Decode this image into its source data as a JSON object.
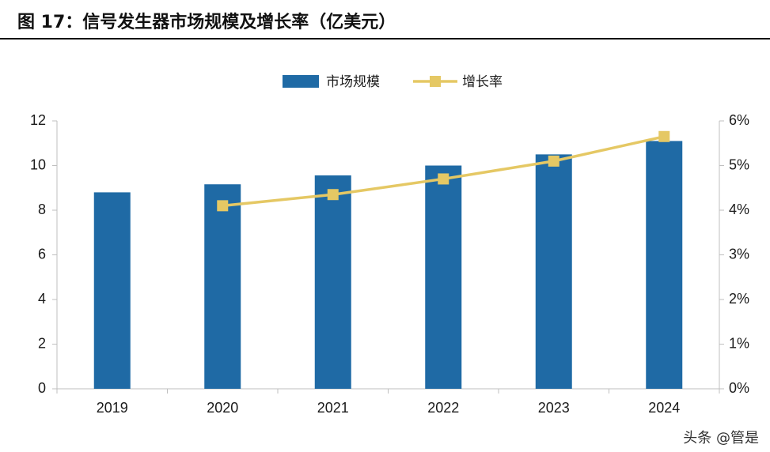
{
  "title": "图 17：信号发生器市场规模及增长率（亿美元）",
  "watermark": "头条 @管是",
  "colors": {
    "bar": "#1f6aa5",
    "line": "#e5c864",
    "axis": "#bfbfbf"
  },
  "chart_data": {
    "type": "bar",
    "categories": [
      "2019",
      "2020",
      "2021",
      "2022",
      "2023",
      "2024"
    ],
    "series": [
      {
        "name": "市场规模",
        "type": "bar",
        "axis": "left",
        "values": [
          8.8,
          9.16,
          9.56,
          10.0,
          10.5,
          11.1
        ]
      },
      {
        "name": "增长率",
        "type": "line",
        "axis": "right",
        "values": [
          null,
          4.1,
          4.35,
          4.7,
          5.1,
          5.65
        ]
      }
    ],
    "y_left": {
      "ylim": [
        0,
        12
      ],
      "ticks": [
        "0",
        "2",
        "4",
        "6",
        "8",
        "10",
        "12"
      ]
    },
    "y_right": {
      "ylim": [
        0,
        6
      ],
      "ticks": [
        "0%",
        "1%",
        "2%",
        "3%",
        "4%",
        "5%",
        "6%"
      ]
    },
    "legend": "top-center",
    "grid": false
  }
}
